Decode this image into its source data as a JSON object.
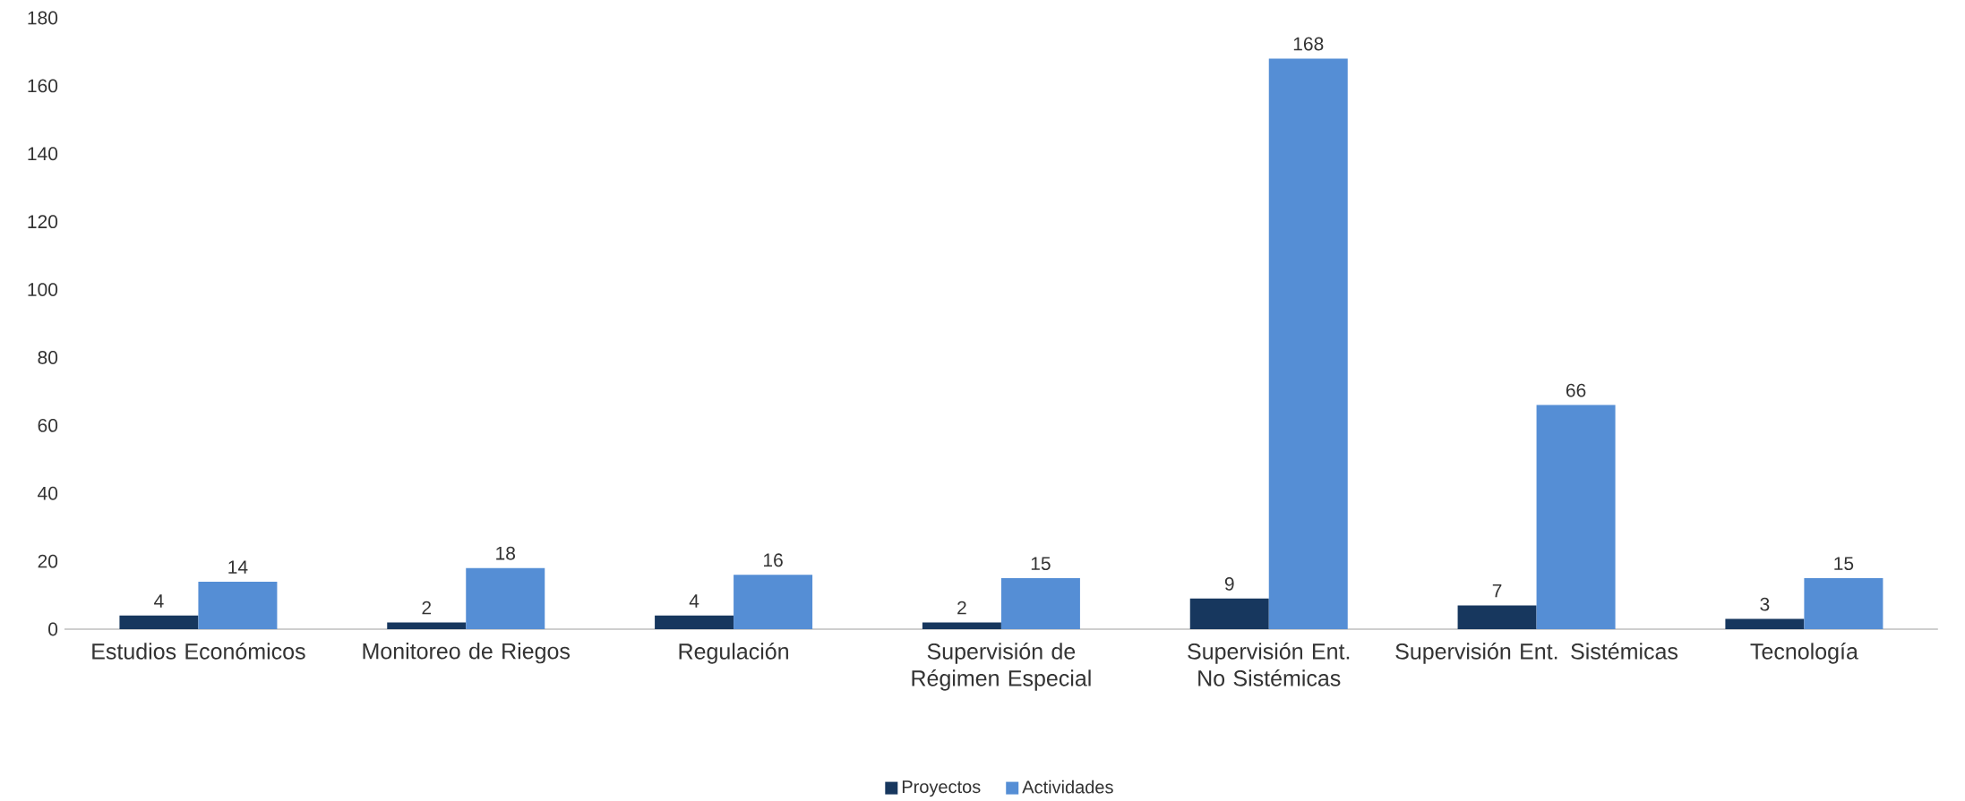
{
  "chart_data": {
    "type": "bar",
    "categories": [
      "Estudios Económicos",
      "Monitoreo de Riegos",
      "Regulación",
      "Supervisión de Régimen Especial",
      "Supervisión Ent. No Sistémicas",
      "Supervisión Ent. Sistémicas",
      "Tecnología"
    ],
    "series": [
      {
        "name": "Proyectos",
        "color": "#17375e",
        "values": [
          4,
          2,
          4,
          2,
          9,
          7,
          3
        ]
      },
      {
        "name": "Actividades",
        "color": "#558ed5",
        "values": [
          14,
          18,
          16,
          15,
          168,
          66,
          15
        ]
      }
    ],
    "ylim": [
      0,
      180
    ],
    "yticks": [
      0,
      20,
      40,
      60,
      80,
      100,
      120,
      140,
      160,
      180
    ],
    "data_labels": true,
    "legend": "bottom"
  }
}
